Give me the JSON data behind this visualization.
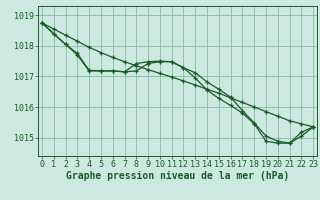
{
  "background_color": "#cce8e0",
  "grid_color": "#88bbaa",
  "line_color": "#1a5c28",
  "xlabel": "Graphe pression niveau de la mer (hPa)",
  "xlabel_fontsize": 7,
  "tick_fontsize": 6,
  "ylim": [
    1014.4,
    1019.3
  ],
  "xlim": [
    -0.3,
    23.3
  ],
  "yticks": [
    1015,
    1016,
    1017,
    1018,
    1019
  ],
  "xticks": [
    0,
    1,
    2,
    3,
    4,
    5,
    6,
    7,
    8,
    9,
    10,
    11,
    12,
    13,
    14,
    15,
    16,
    17,
    18,
    19,
    20,
    21,
    22,
    23
  ],
  "series1": [
    1018.75,
    1018.55,
    1018.35,
    1018.15,
    1017.95,
    1017.78,
    1017.62,
    1017.48,
    1017.35,
    1017.22,
    1017.1,
    1016.98,
    1016.85,
    1016.72,
    1016.58,
    1016.45,
    1016.3,
    1016.15,
    1016.0,
    1015.85,
    1015.7,
    1015.55,
    1015.45,
    1015.35
  ],
  "series2": [
    1018.75,
    1018.4,
    1018.05,
    1017.75,
    1017.2,
    1017.18,
    1017.18,
    1017.15,
    1017.42,
    1017.48,
    1017.5,
    1017.48,
    1017.28,
    1016.95,
    1016.55,
    1016.28,
    1016.05,
    1015.8,
    1015.45,
    1014.88,
    1014.82,
    1014.82,
    1015.18,
    1015.35
  ],
  "series3": [
    1018.75,
    1018.38,
    1018.05,
    1017.7,
    1017.18,
    1017.18,
    1017.18,
    1017.15,
    1017.18,
    1017.42,
    1017.48,
    1017.48,
    1017.28,
    1017.12,
    1016.82,
    1016.58,
    1016.32,
    1015.88,
    1015.48,
    1015.05,
    1014.88,
    1014.82,
    1015.05,
    1015.35
  ]
}
